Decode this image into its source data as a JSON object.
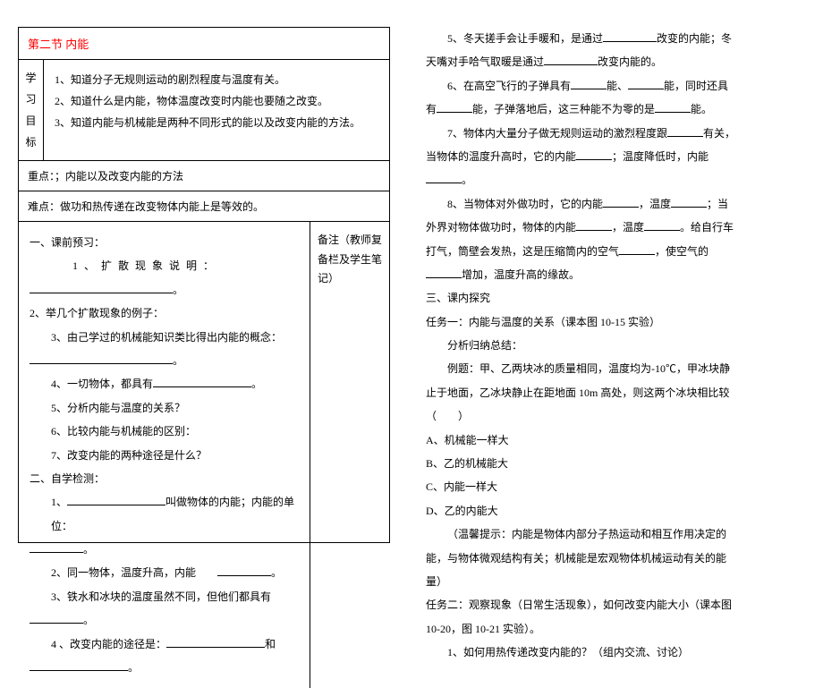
{
  "left": {
    "title": "第二节 内能",
    "obj_label_1": "学",
    "obj_label_2": "习",
    "obj_label_3": "目",
    "obj_label_4": "标",
    "obj1": "1、知道分子无规则运动的剧烈程度与温度有关。",
    "obj2": "2、知道什么是内能，物体温度改变时内能也要随之改变。",
    "obj3": "3、知道内能与机械能是两种不同形式的能以及改变内能的方法。",
    "key": "重点：；内能以及改变内能的方法",
    "diff": "难点：做功和热传递在改变物体内能上是等效的。",
    "sec1": "一、课前预习：",
    "q1a": "1 、 扩 散 现 象 说 明 ：",
    "q1b": "。",
    "q2": "2、举几个扩散现象的例子：",
    "q3": "3、由己学过的机械能知识类比得出内能的概念：",
    "q3b": "。",
    "q4": "4、一切物体，都具有",
    "q4b": "。",
    "q5": "5、分析内能与温度的关系？",
    "q6": "6、比较内能与机械能的区别：",
    "q7": "7、改变内能的两种途径是什么？",
    "sec2": "二、自学检测：",
    "c1a": "1、",
    "c1b": "叫做物体的内能；内能的单位：",
    "c1c": "。",
    "c2a": "2、同一物体，温度升高，内能",
    "c2b": "。",
    "c3a": "3、铁水和冰块的温度虽然不同，但他们都具有",
    "c3b": "。",
    "c4a": "4 、改变内能的途径是：",
    "c4b": "和",
    "c4c": "。",
    "notes1": "备注（教师复",
    "notes2": "备栏及学生笔",
    "notes3": "记）"
  },
  "right": {
    "p5a": "5、冬天搓手会让手暖和，是通过",
    "p5b": "改变的内能；冬",
    "p5c": "天嘴对手哈气取暖是通过",
    "p5d": "改变内能的。",
    "p6a": "6、在高空飞行的子弹具有",
    "p6b": "能、",
    "p6c": "能，同时还具",
    "p6d": "有",
    "p6e": "能，子弹落地后，这三种能不为零的是",
    "p6f": "能。",
    "p7a": "7、物体内大量分子做无规则运动的激烈程度跟",
    "p7b": "有关，",
    "p7c": "当物体的温度升高时，它的内能",
    "p7d": "；温度降低时，内能",
    "p7e": "。",
    "p8a": "8、当物体对外做功时，它的内能",
    "p8b": "，温度",
    "p8c": "；当",
    "p8d": "外界对物体做功时，物体的内能",
    "p8e": "，温度",
    "p8f": "。给自行车",
    "p8g": "打气，筒壁会发热，这是压缩筒内的空气",
    "p8h": "，使空气的",
    "p8i": "增加，温度升高的缘故。",
    "sec3": "三、课内探究",
    "t1": "任务一：内能与温度的关系（课本图 10-15 实验）",
    "t1a": "分析归纳总结：",
    "ex1": "例题：甲、乙两块冰的质量相同，温度均为-10℃，甲冰块静",
    "ex2": "止于地面，乙冰块静止在距地面 10m 高处，则这两个冰块相比较",
    "ex3": "（　　）",
    "oa": "A、机械能一样大",
    "ob": "B、乙的机械能大",
    "oc": "C、内能一样大",
    "od": "D、乙的内能大",
    "tip1": "（温馨提示：内能是物体内部分子热运动和相互作用决定的",
    "tip2": "能，与物体微观结构有关；机械能是宏观物体机械运动有关的能",
    "tip3": "量）",
    "t2a": "任务二：观察现象（日常生活现象），如何改变内能大小（课本图",
    "t2b": "10-20，图 10-21 实验）。",
    "t2q": "1、如何用热传递改变内能的？（组内交流、讨论）"
  }
}
